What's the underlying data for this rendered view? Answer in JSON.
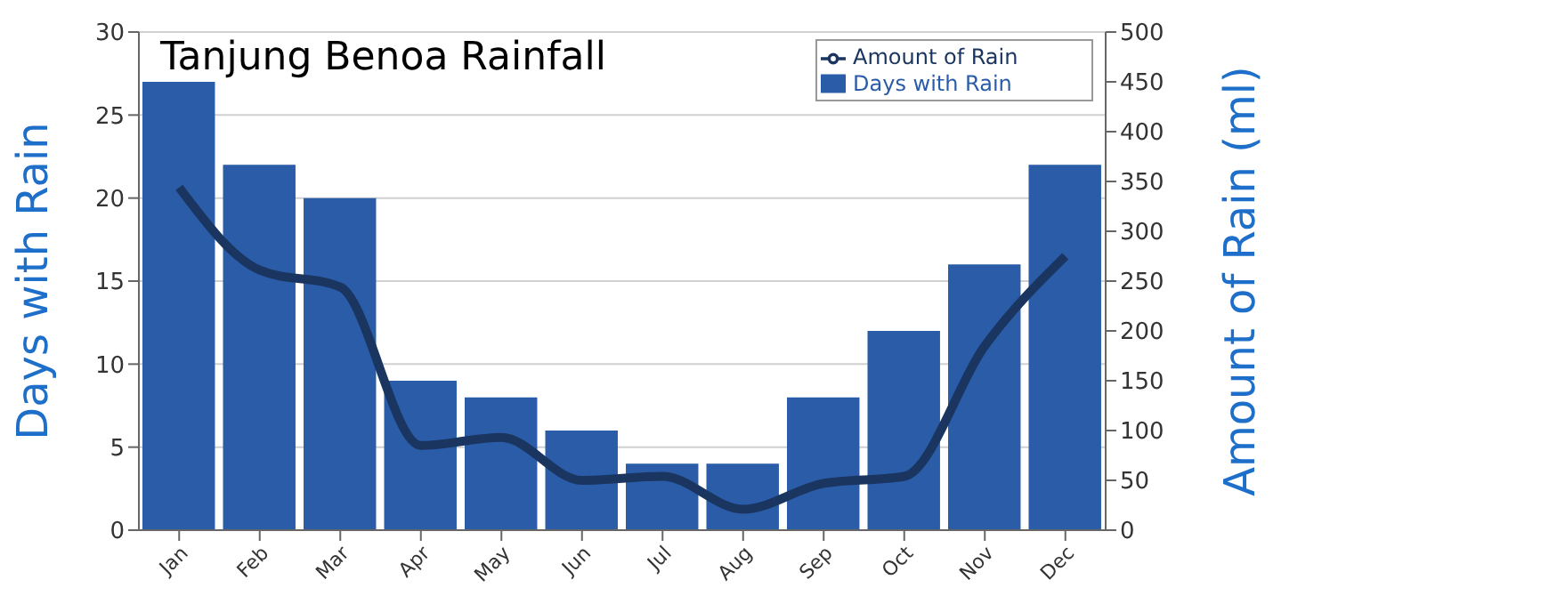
{
  "chart_data": {
    "type": "bar",
    "title": "Tanjung Benoa Rainfall",
    "ylabel": "Days with Rain",
    "y2label": "Amount of Rain (ml)",
    "categories": [
      "Jan",
      "Feb",
      "Mar",
      "Apr",
      "May",
      "Jun",
      "Jul",
      "Aug",
      "Sep",
      "Oct",
      "Nov",
      "Dec"
    ],
    "series": [
      {
        "name": "Days with Rain",
        "type": "bar",
        "color": "#2a5ca8",
        "values": [
          27,
          22,
          20,
          9,
          8,
          6,
          4,
          4,
          8,
          12,
          16,
          22
        ]
      },
      {
        "name": "Amount of Rain",
        "type": "line",
        "axis": "y2",
        "color": "#1a3560",
        "values": [
          344,
          261,
          244,
          85,
          93,
          50,
          54,
          21,
          47,
          54,
          185,
          275
        ]
      }
    ],
    "ylim": [
      0,
      30
    ],
    "yticks": [
      0,
      5,
      10,
      15,
      20,
      25,
      30
    ],
    "y2lim": [
      0,
      500
    ],
    "y2ticks": [
      0,
      50,
      100,
      150,
      200,
      250,
      300,
      350,
      400,
      450,
      500
    ],
    "grid": "y",
    "legend": "top right",
    "marker": "none",
    "line_style": "solid"
  }
}
